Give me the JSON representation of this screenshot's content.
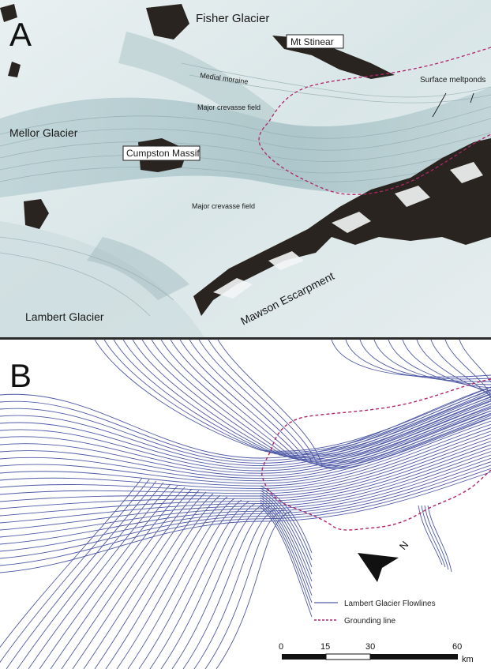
{
  "panel_a": {
    "letter": "A",
    "labels": {
      "fisher_glacier": "Fisher Glacier",
      "mt_stinear": "Mt Stinear",
      "medial_moraine": "Medial moraine",
      "surface_meltponds": "Surface meltponds",
      "major_crevasse_field_1": "Major crevasse field",
      "mellor_glacier": "Mellor Glacier",
      "cumpston_massif": "Cumpston Massif",
      "major_crevasse_field_2": "Major crevasse field",
      "lambert_glacier": "Lambert Glacier",
      "mawson_escarpment": "Mawson Escarpment"
    }
  },
  "panel_b": {
    "letter": "B",
    "legend": {
      "flowlines": "Lambert Glacier Flowlines",
      "grounding": "Grounding line"
    },
    "north": "N",
    "scale": {
      "ticks": [
        "0",
        "15",
        "30",
        "60"
      ],
      "unit": "km"
    }
  },
  "colors": {
    "flowline": "#4f5aa6",
    "grounding_line": "#b0246a",
    "ice_light": "#eef3f4",
    "ice_blue": "#a9c6cb",
    "rock": "#2a2420"
  }
}
